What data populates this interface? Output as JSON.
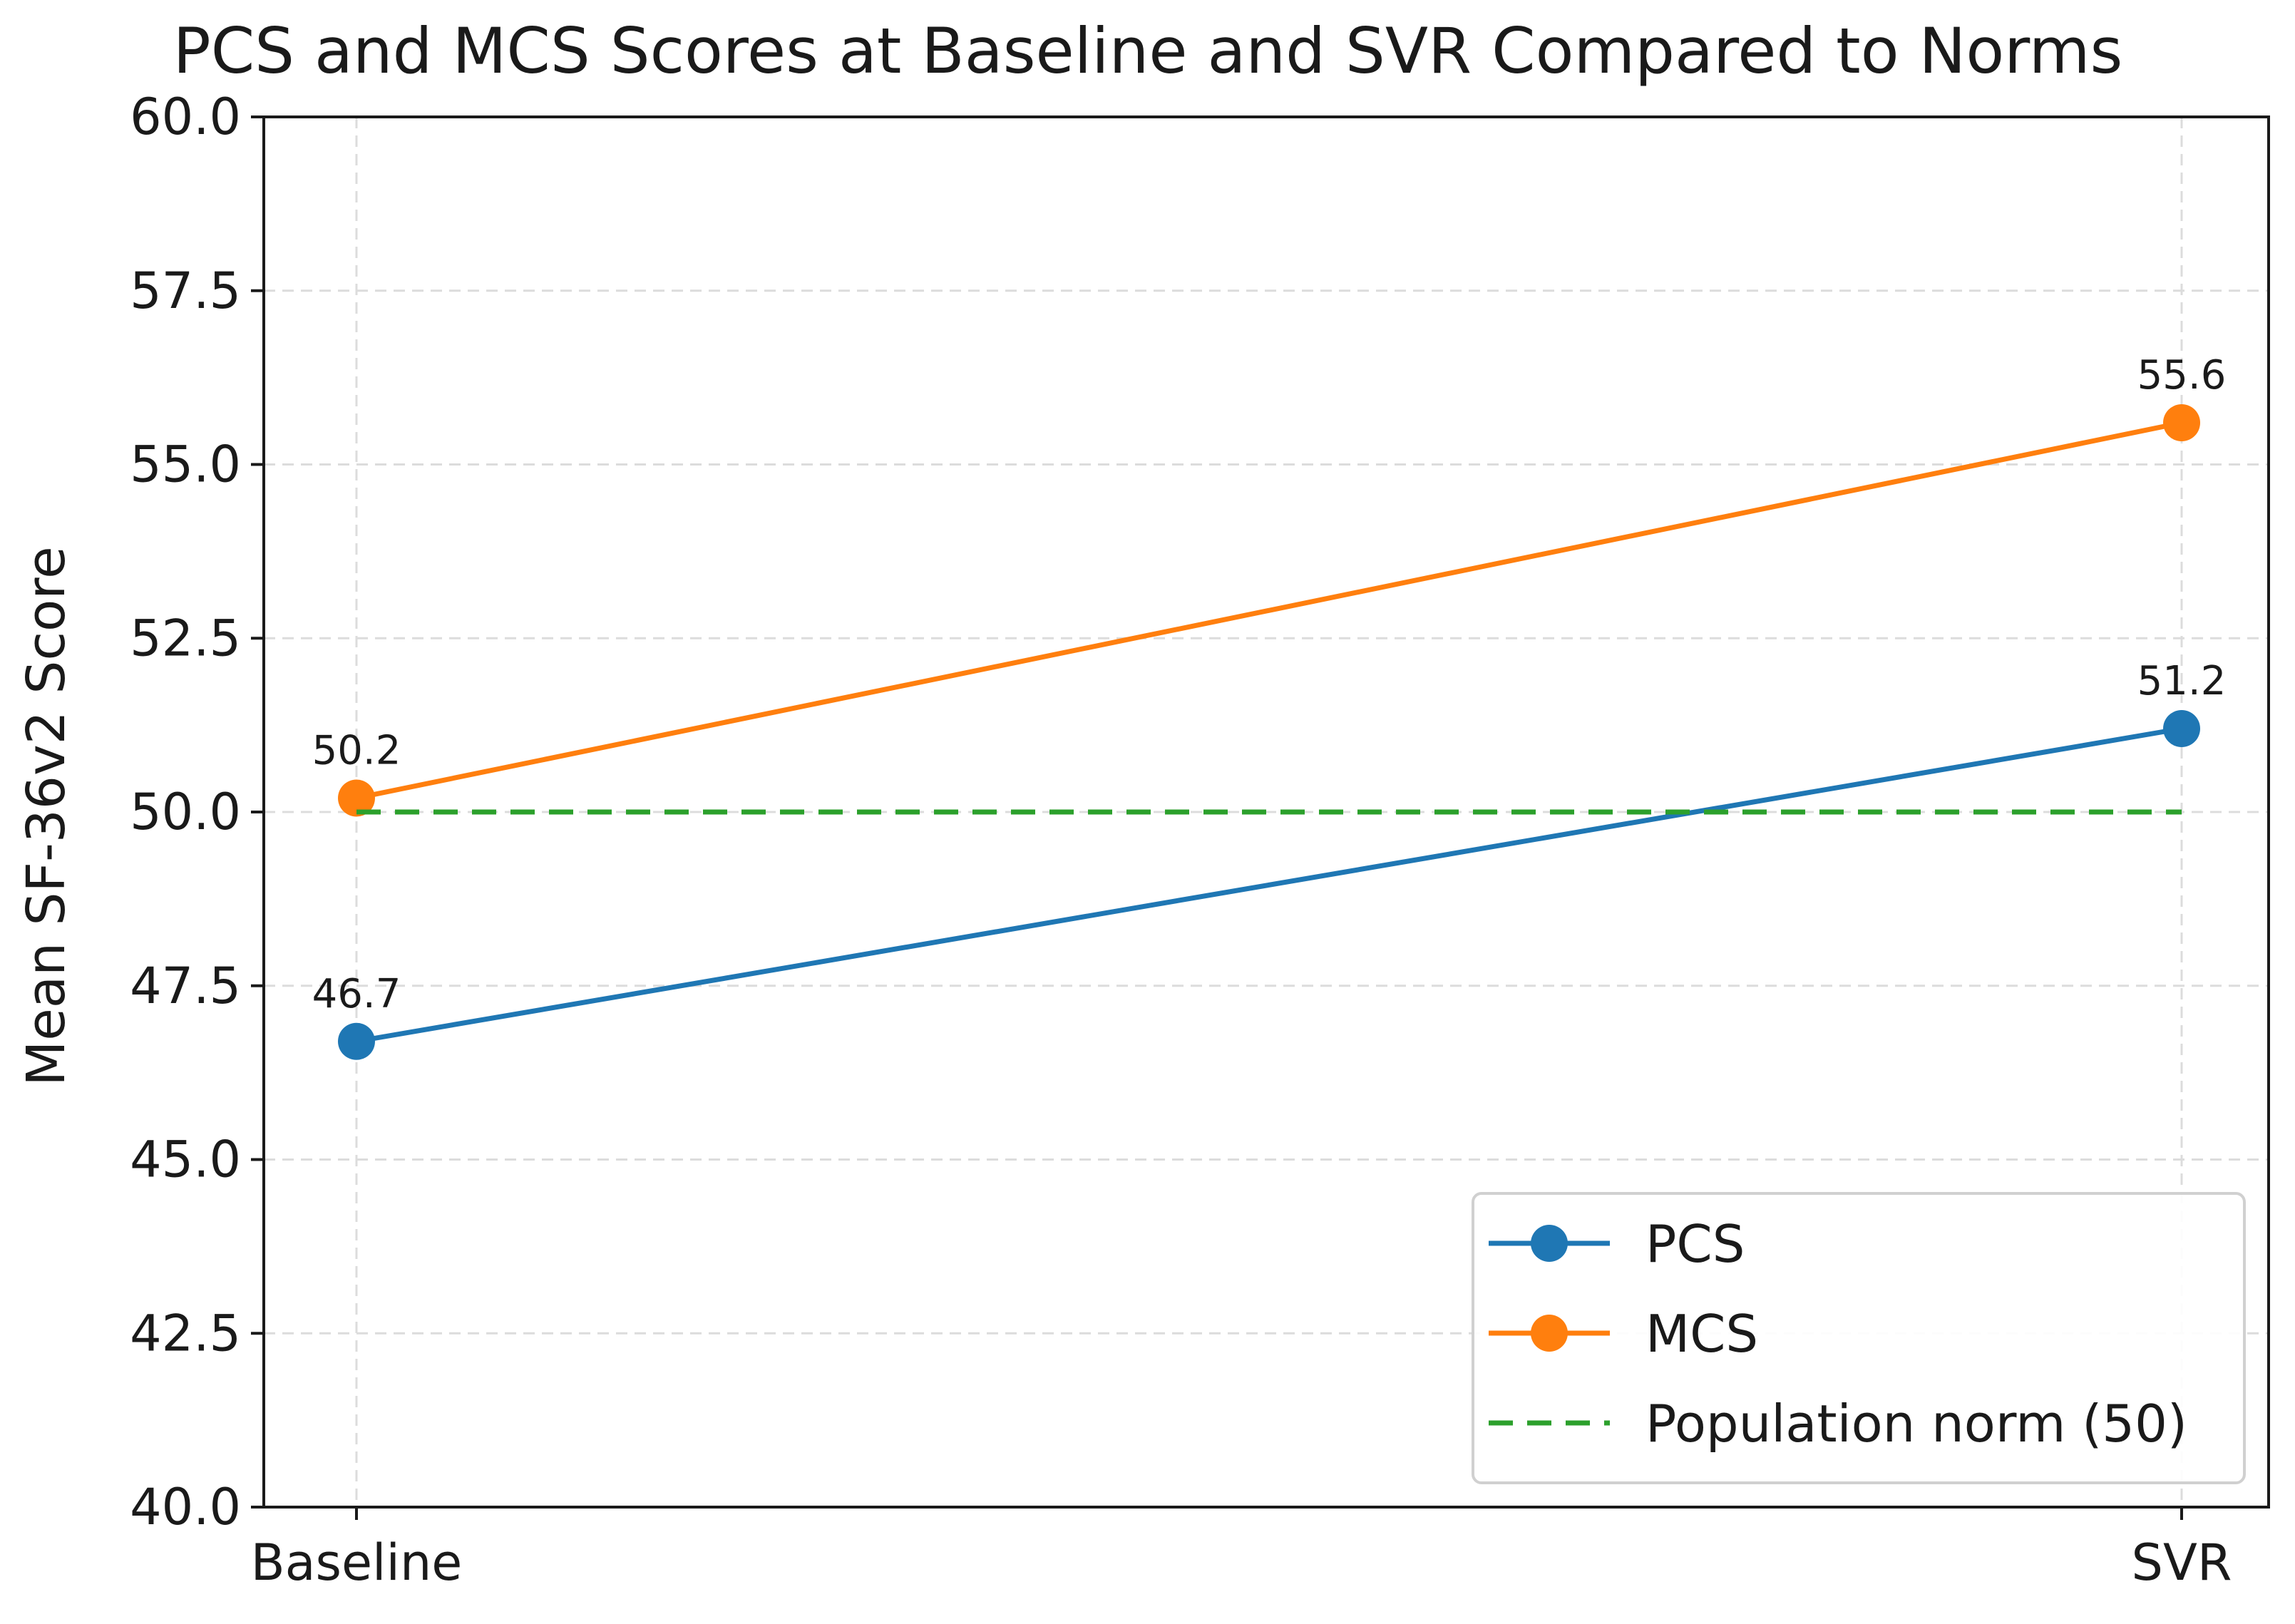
{
  "chart_data": {
    "type": "line",
    "title": "PCS and MCS Scores at Baseline and SVR Compared to Norms",
    "xlabel": "",
    "ylabel": "Mean SF-36v2 Score",
    "categories": [
      "Baseline",
      "SVR"
    ],
    "ylim": [
      40.0,
      60.0
    ],
    "yticks": [
      "40.0",
      "42.5",
      "45.0",
      "47.5",
      "50.0",
      "52.5",
      "55.0",
      "57.5",
      "60.0"
    ],
    "grid": true,
    "legend_position": "lower-right",
    "series": [
      {
        "name": "PCS",
        "values": [
          46.7,
          51.2
        ],
        "labels": [
          "46.7",
          "51.2"
        ],
        "color": "#1f77b4",
        "style": "solid",
        "marker": true
      },
      {
        "name": "MCS",
        "values": [
          50.2,
          55.6
        ],
        "labels": [
          "50.2",
          "55.6"
        ],
        "color": "#ff7f0e",
        "style": "solid",
        "marker": true
      },
      {
        "name": "Population norm (50)",
        "values": [
          50,
          50
        ],
        "color": "#2ca02c",
        "style": "dashed",
        "marker": false
      }
    ]
  }
}
